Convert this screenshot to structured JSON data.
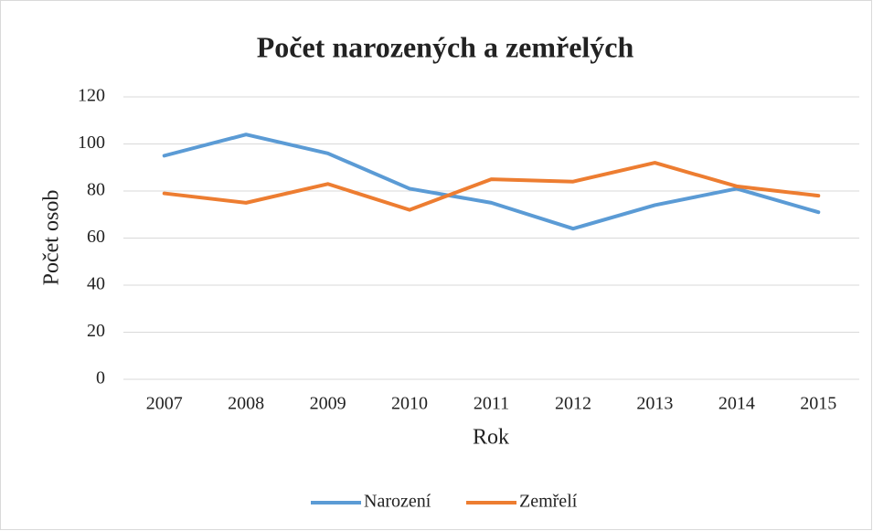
{
  "chart_data": {
    "type": "line",
    "title": "Počet narozených  a zemřelých",
    "x_label": "Rok",
    "y_label": "Počet osob",
    "categories": [
      "2007",
      "2008",
      "2009",
      "2010",
      "2011",
      "2012",
      "2013",
      "2014",
      "2015"
    ],
    "series": [
      {
        "name": "Narození",
        "color": "#5b9bd5",
        "values": [
          95,
          104,
          96,
          81,
          75,
          64,
          74,
          81,
          71
        ]
      },
      {
        "name": "Zemřelí",
        "color": "#ed7d31",
        "values": [
          79,
          75,
          83,
          72,
          85,
          84,
          92,
          82,
          78
        ]
      }
    ],
    "ylim": [
      0,
      120
    ],
    "yticks": [
      0,
      20,
      40,
      60,
      80,
      100,
      120
    ],
    "grid": true,
    "legend": "bottom"
  }
}
